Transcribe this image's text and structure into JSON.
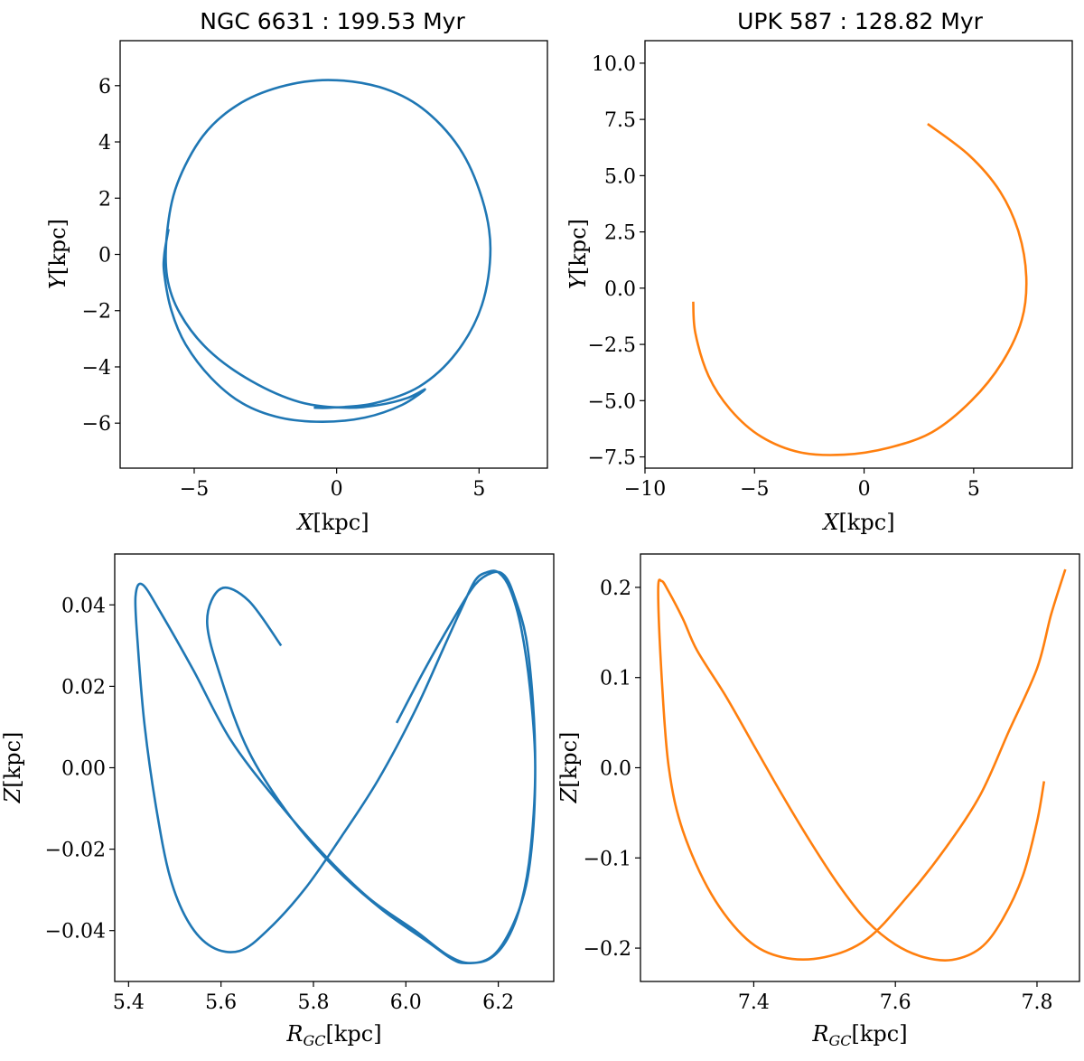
{
  "colors": {
    "blue": "#1f77b4",
    "orange": "#ff7f0e"
  },
  "chart_data": [
    {
      "type": "line",
      "panel": "top-left",
      "title": "NGC 6631 : 199.53 Myr",
      "xlabel": {
        "sym": "X",
        "sub": "",
        "unit": "[kpc]"
      },
      "ylabel": {
        "sym": "Y",
        "sub": "",
        "unit": "[kpc]"
      },
      "xlim": [
        -7.6,
        7.4
      ],
      "ylim": [
        -7.6,
        7.6
      ],
      "xticks": [
        {
          "v": -5,
          "label": "−5"
        },
        {
          "v": 0,
          "label": "0"
        },
        {
          "v": 5,
          "label": "5"
        }
      ],
      "yticks": [
        {
          "v": -6,
          "label": "−6"
        },
        {
          "v": -4,
          "label": "−4"
        },
        {
          "v": -2,
          "label": "−2"
        },
        {
          "v": 0,
          "label": "0"
        },
        {
          "v": 2,
          "label": "2"
        },
        {
          "v": 4,
          "label": "4"
        },
        {
          "v": 6,
          "label": "6"
        }
      ],
      "series": [
        {
          "color": "#1f77b4",
          "x": [
            -5.9,
            -6.05,
            -6.05,
            -5.8,
            -5.3,
            -4.4,
            -3.3,
            -2.0,
            -0.5,
            1.0,
            2.3,
            3.1,
            2.5,
            1.5,
            0.3,
            -1.3,
            -3.0,
            -4.5,
            -5.5,
            -5.95,
            -5.95,
            -5.6,
            -4.7,
            -3.5,
            -2.0,
            -0.3,
            1.5,
            3.0,
            4.3,
            5.1,
            5.4,
            5.1,
            4.2,
            2.9,
            1.3,
            -0.2,
            -0.8
          ],
          "y": [
            0.9,
            0.0,
            -0.7,
            -2.0,
            -3.2,
            -4.4,
            -5.3,
            -5.8,
            -5.95,
            -5.8,
            -5.35,
            -4.8,
            -5.1,
            -5.35,
            -5.45,
            -5.25,
            -4.5,
            -3.4,
            -2.1,
            -0.8,
            0.8,
            2.5,
            4.2,
            5.3,
            5.95,
            6.2,
            5.95,
            5.2,
            3.8,
            2.0,
            0.2,
            -1.8,
            -3.5,
            -4.7,
            -5.3,
            -5.45,
            -5.45
          ]
        }
      ]
    },
    {
      "type": "line",
      "panel": "top-right",
      "title": "UPK 587 : 128.82 Myr",
      "xlabel": {
        "sym": "X",
        "sub": "",
        "unit": "[kpc]"
      },
      "ylabel": {
        "sym": "Y",
        "sub": "",
        "unit": "[kpc]"
      },
      "xlim": [
        -10,
        9.5
      ],
      "ylim": [
        -8,
        11
      ],
      "xticks": [
        {
          "v": -10,
          "label": "−10"
        },
        {
          "v": -5,
          "label": "−5"
        },
        {
          "v": 0,
          "label": "0"
        },
        {
          "v": 5,
          "label": "5"
        }
      ],
      "yticks": [
        {
          "v": -7.5,
          "label": "−7.5"
        },
        {
          "v": -5,
          "label": "−5.0"
        },
        {
          "v": -2.5,
          "label": "−2.5"
        },
        {
          "v": 0,
          "label": "0.0"
        },
        {
          "v": 2.5,
          "label": "2.5"
        },
        {
          "v": 5,
          "label": "5.0"
        },
        {
          "v": 7.5,
          "label": "7.5"
        },
        {
          "v": 10,
          "label": "10.0"
        }
      ],
      "series": [
        {
          "color": "#ff7f0e",
          "x": [
            -7.8,
            -7.7,
            -7.1,
            -6.1,
            -4.7,
            -2.9,
            -0.9,
            1.1,
            3.1,
            4.9,
            6.3,
            7.2,
            7.4,
            7.05,
            6.2,
            4.8,
            2.9
          ],
          "y": [
            -0.6,
            -2.0,
            -3.9,
            -5.4,
            -6.6,
            -7.3,
            -7.4,
            -7.1,
            -6.4,
            -5.0,
            -3.3,
            -1.4,
            0.5,
            2.5,
            4.3,
            5.9,
            7.3
          ]
        }
      ]
    },
    {
      "type": "line",
      "panel": "bottom-left",
      "title": "",
      "xlabel": {
        "sym": "R",
        "sub": "GC",
        "unit": "[kpc]"
      },
      "ylabel": {
        "sym": "Z",
        "sub": "",
        "unit": "[kpc]"
      },
      "xlim": [
        5.37,
        6.32
      ],
      "ylim": [
        -0.0525,
        0.0525
      ],
      "xticks": [
        {
          "v": 5.4,
          "label": "5.4"
        },
        {
          "v": 5.6,
          "label": "5.6"
        },
        {
          "v": 5.8,
          "label": "5.8"
        },
        {
          "v": 6.0,
          "label": "6.0"
        },
        {
          "v": 6.2,
          "label": "6.2"
        }
      ],
      "yticks": [
        {
          "v": -0.04,
          "label": "−0.04"
        },
        {
          "v": -0.02,
          "label": "−0.02"
        },
        {
          "v": 0,
          "label": "0.00"
        },
        {
          "v": 0.02,
          "label": "0.02"
        },
        {
          "v": 0.04,
          "label": "0.04"
        }
      ],
      "series": [
        {
          "color": "#1f77b4",
          "x": [
            5.98,
            6.04,
            6.1,
            6.15,
            6.19,
            6.215,
            6.235,
            6.26,
            6.275,
            6.28,
            6.275,
            6.26,
            6.23,
            6.19,
            6.14,
            6.09,
            6.02,
            5.92,
            5.82,
            5.72,
            5.62,
            5.54,
            5.47,
            5.43,
            5.415,
            5.42,
            5.435,
            5.46,
            5.49,
            5.53,
            5.58,
            5.64,
            5.7,
            5.78,
            5.86,
            5.94,
            6.02,
            6.08,
            6.12,
            6.15,
            6.175,
            6.2,
            6.225,
            6.25,
            6.27,
            6.28,
            6.27,
            6.25,
            6.22,
            6.18,
            6.13,
            6.1,
            6.05,
            5.95,
            5.85,
            5.75,
            5.66,
            5.6,
            5.57,
            5.6,
            5.66,
            5.73
          ],
          "y": [
            0.011,
            0.024,
            0.036,
            0.045,
            0.048,
            0.047,
            0.042,
            0.032,
            0.016,
            0.0,
            -0.016,
            -0.029,
            -0.039,
            -0.046,
            -0.048,
            -0.046,
            -0.04,
            -0.032,
            -0.021,
            -0.008,
            0.007,
            0.024,
            0.038,
            0.045,
            0.042,
            0.03,
            0.01,
            -0.01,
            -0.027,
            -0.038,
            -0.044,
            -0.045,
            -0.04,
            -0.03,
            -0.017,
            -0.003,
            0.014,
            0.029,
            0.039,
            0.046,
            0.048,
            0.048,
            0.044,
            0.034,
            0.018,
            0.0,
            -0.02,
            -0.033,
            -0.042,
            -0.047,
            -0.048,
            -0.047,
            -0.043,
            -0.035,
            -0.025,
            -0.012,
            0.004,
            0.022,
            0.036,
            0.044,
            0.041,
            0.03
          ]
        }
      ]
    },
    {
      "type": "line",
      "panel": "bottom-right",
      "title": "",
      "xlabel": {
        "sym": "R",
        "sub": "GC",
        "unit": "[kpc]"
      },
      "ylabel": {
        "sym": "Z",
        "sub": "",
        "unit": "[kpc]"
      },
      "xlim": [
        7.24,
        7.86
      ],
      "ylim": [
        -0.237,
        0.237
      ],
      "xticks": [
        {
          "v": 7.4,
          "label": "7.4"
        },
        {
          "v": 7.6,
          "label": "7.6"
        },
        {
          "v": 7.8,
          "label": "7.8"
        }
      ],
      "yticks": [
        {
          "v": -0.2,
          "label": "−0.2"
        },
        {
          "v": -0.1,
          "label": "−0.1"
        },
        {
          "v": 0,
          "label": "0.0"
        },
        {
          "v": 0.1,
          "label": "0.1"
        },
        {
          "v": 0.2,
          "label": "0.2"
        }
      ],
      "series": [
        {
          "color": "#ff7f0e",
          "x": [
            7.81,
            7.8,
            7.78,
            7.75,
            7.72,
            7.68,
            7.64,
            7.6,
            7.56,
            7.52,
            7.48,
            7.44,
            7.4,
            7.36,
            7.32,
            7.3,
            7.28,
            7.27,
            7.265,
            7.27,
            7.28,
            7.3,
            7.34,
            7.39,
            7.44,
            7.5,
            7.56,
            7.62,
            7.67,
            7.72,
            7.76,
            7.8,
            7.82,
            7.84
          ],
          "y": [
            -0.015,
            -0.06,
            -0.12,
            -0.17,
            -0.2,
            -0.213,
            -0.21,
            -0.196,
            -0.17,
            -0.13,
            -0.082,
            -0.03,
            0.025,
            0.08,
            0.13,
            0.165,
            0.195,
            0.207,
            0.196,
            0.1,
            0.0,
            -0.07,
            -0.14,
            -0.19,
            -0.21,
            -0.21,
            -0.19,
            -0.14,
            -0.09,
            -0.03,
            0.04,
            0.11,
            0.17,
            0.22
          ]
        }
      ]
    }
  ]
}
